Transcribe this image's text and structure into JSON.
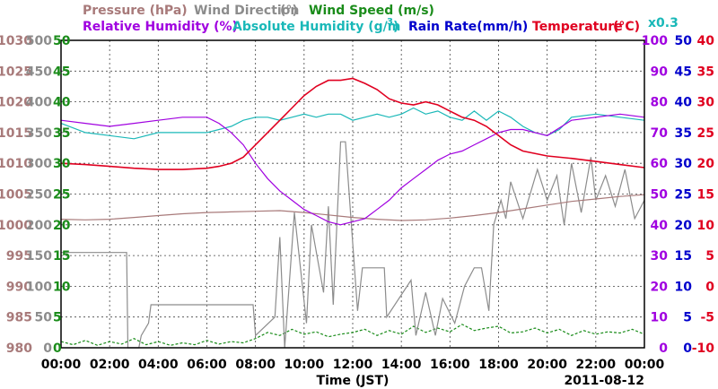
{
  "chart_data": {
    "type": "line",
    "xlabel": "Time (JST)",
    "date_label": "2011-08-12",
    "x_ticks": [
      "00:00",
      "02:00",
      "04:00",
      "06:00",
      "08:00",
      "10:00",
      "12:00",
      "14:00",
      "16:00",
      "18:00",
      "20:00",
      "22:00",
      "00:00"
    ],
    "grid": true,
    "legend": [
      {
        "text": "Pressure (hPa)",
        "color": "#a87a7a"
      },
      {
        "text": "Wind Direction",
        "color": "#8c8c8c"
      },
      {
        "text": "Wind Speed (m/s)",
        "color": "#1a8c1a"
      },
      {
        "text": "Relative Humidity (%)",
        "color": "#a000e0"
      },
      {
        "text": "Absolute Humidity (g/m",
        "color": "#1ab8b8"
      },
      {
        "text": "Rain Rate(mm/h)",
        "color": "#0000cc"
      },
      {
        "text": "Temperature",
        "color": "#e00020"
      },
      {
        "text": "x0.3",
        "color": "#1ab8b8"
      }
    ],
    "axes": {
      "pressure": {
        "color": "#a87a7a",
        "range": [
          980,
          1030
        ],
        "ticks": [
          "1030",
          "1025",
          "1020",
          "1015",
          "1010",
          "1005",
          "1000",
          "995",
          "990",
          "985",
          "980"
        ]
      },
      "wind_direction": {
        "color": "#8c8c8c",
        "range": [
          0,
          500
        ],
        "ticks": [
          "500",
          "450",
          "400",
          "350",
          "300",
          "250",
          "200",
          "150",
          "100",
          "50",
          "0"
        ]
      },
      "wind_speed": {
        "color": "#1a8c1a",
        "range": [
          0,
          50
        ],
        "ticks": [
          "50",
          "45",
          "40",
          "35",
          "30",
          "25",
          "20",
          "15",
          "10",
          "5",
          "0"
        ]
      },
      "humidity": {
        "color": "#a000e0",
        "range": [
          0,
          100
        ],
        "ticks": [
          "100",
          "90",
          "80",
          "70",
          "60",
          "50",
          "40",
          "30",
          "20",
          "10",
          "0"
        ]
      },
      "rain_rate": {
        "color": "#0000cc",
        "range": [
          0,
          50
        ],
        "ticks": [
          "50",
          "45",
          "40",
          "35",
          "30",
          "25",
          "20",
          "15",
          "10",
          "5",
          "0"
        ]
      },
      "temperature": {
        "color": "#e00020",
        "range": [
          -10,
          40
        ],
        "ticks": [
          "40",
          "35",
          "30",
          "25",
          "20",
          "15",
          "10",
          "5",
          "0",
          "-5",
          "-10"
        ]
      }
    },
    "series": [
      {
        "name": "Temperature",
        "color": "#e00020",
        "axis": "temperature",
        "x": [
          0,
          1,
          2,
          3,
          4,
          5,
          6,
          6.5,
          7,
          7.5,
          8,
          8.5,
          9,
          9.5,
          10,
          10.5,
          11,
          11.5,
          12,
          12.5,
          13,
          13.5,
          14,
          14.5,
          15,
          15.5,
          16,
          16.5,
          17,
          17.5,
          18,
          18.5,
          19,
          20,
          21,
          22,
          23,
          24
        ],
        "y": [
          20,
          19.8,
          19.5,
          19.2,
          19,
          19,
          19.2,
          19.5,
          20,
          21,
          23,
          25,
          27,
          29,
          31,
          32.5,
          33.5,
          33.5,
          33.8,
          33,
          32,
          30.5,
          29.8,
          29.5,
          30,
          29.5,
          28.5,
          27.5,
          27,
          26,
          24.5,
          23,
          22,
          21.2,
          20.8,
          20.3,
          19.8,
          19.3
        ]
      },
      {
        "name": "Relative Humidity (%)",
        "color": "#a000e0",
        "axis": "humidity",
        "x": [
          0,
          1,
          2,
          3,
          4,
          5,
          6,
          6.5,
          7,
          7.5,
          8,
          8.5,
          9,
          9.5,
          10,
          10.5,
          11,
          11.5,
          12,
          12.5,
          13,
          13.5,
          14,
          14.5,
          15,
          15.5,
          16,
          16.5,
          17,
          17.5,
          18,
          18.5,
          19,
          19.5,
          20,
          21,
          22,
          23,
          24
        ],
        "y": [
          74,
          73,
          72,
          73,
          74,
          75,
          75,
          73,
          70,
          66,
          60,
          55,
          51,
          48,
          45,
          43,
          41,
          40,
          41,
          42,
          45,
          48,
          52,
          55,
          58,
          61,
          63,
          64,
          66,
          68,
          70,
          71,
          71,
          70,
          69,
          74,
          75,
          76,
          75
        ]
      },
      {
        "name": "Absolute Humidity (g/m",
        "color": "#1ab8b8",
        "axis": "humidity",
        "x": [
          0,
          1,
          2,
          3,
          4,
          5,
          6,
          6.5,
          7,
          7.5,
          8,
          8.5,
          9,
          9.5,
          10,
          10.5,
          11,
          11.5,
          12,
          12.5,
          13,
          13.5,
          14,
          14.5,
          15,
          15.5,
          16,
          16.5,
          17,
          17.5,
          18,
          18.5,
          19,
          19.5,
          20,
          20.5,
          21,
          22,
          23,
          24
        ],
        "y": [
          73,
          70,
          69,
          68,
          70,
          70,
          70,
          71,
          72,
          74,
          75,
          75,
          74,
          75,
          76,
          75,
          76,
          76,
          74,
          75,
          76,
          75,
          76,
          78,
          76,
          77,
          75,
          74,
          77,
          74,
          77,
          75,
          72,
          70,
          69,
          71,
          75,
          76,
          75,
          74
        ]
      },
      {
        "name": "Pressure (hPa)",
        "color": "#a87a7a",
        "axis": "pressure",
        "x": [
          0,
          1,
          2,
          3,
          4,
          5,
          6,
          7,
          8,
          9,
          10,
          11,
          12,
          13,
          14,
          15,
          16,
          17,
          18,
          19,
          20,
          21,
          22,
          23,
          24
        ],
        "y": [
          1000.9,
          1000.8,
          1000.9,
          1001.2,
          1001.5,
          1001.8,
          1002,
          1002.1,
          1002.2,
          1002.3,
          1002,
          1001.6,
          1001.2,
          1000.9,
          1000.7,
          1000.8,
          1001.1,
          1001.5,
          1002,
          1002.6,
          1003.2,
          1003.8,
          1004.2,
          1004.6,
          1004.9
        ]
      },
      {
        "name": "Wind Direction",
        "color": "#8c8c8c",
        "axis": "wind_direction",
        "x": [
          0,
          2.7,
          2.75,
          3.2,
          3.3,
          3.6,
          3.7,
          7.9,
          8,
          8.8,
          9,
          9.2,
          9.6,
          10.1,
          10.3,
          10.8,
          11,
          11.2,
          11.5,
          11.7,
          12.2,
          12.4,
          12.7,
          13.3,
          13.4,
          14.4,
          14.6,
          15,
          15.4,
          15.7,
          16.2,
          16.6,
          17,
          17.3,
          17.6,
          17.8,
          18.1,
          18.3,
          18.5,
          19,
          19.6,
          20,
          20.4,
          20.7,
          21,
          21.4,
          21.8,
          22,
          22.4,
          22.8,
          23.2,
          23.6,
          24
        ],
        "y": [
          155,
          155,
          0,
          0,
          20,
          40,
          70,
          70,
          20,
          50,
          180,
          0,
          220,
          40,
          200,
          90,
          230,
          70,
          335,
          335,
          60,
          130,
          130,
          130,
          50,
          110,
          20,
          90,
          20,
          80,
          40,
          100,
          130,
          130,
          60,
          200,
          240,
          210,
          270,
          210,
          290,
          240,
          280,
          200,
          300,
          220,
          310,
          240,
          280,
          230,
          290,
          210,
          240
        ]
      },
      {
        "name": "Wind Speed (m/s)",
        "color": "#1a8c1a",
        "axis": "wind_speed",
        "x": [
          0,
          0.5,
          1,
          1.5,
          2,
          2.5,
          3,
          3.5,
          4,
          4.5,
          5,
          5.5,
          6,
          6.5,
          7,
          7.5,
          8,
          8.5,
          9,
          9.5,
          10,
          10.5,
          11,
          11.5,
          12,
          12.5,
          13,
          13.5,
          14,
          14.5,
          15,
          15.5,
          16,
          16.5,
          17,
          17.5,
          18,
          18.5,
          19,
          19.5,
          20,
          20.5,
          21,
          21.5,
          22,
          22.5,
          23,
          23.5,
          24
        ],
        "y": [
          1,
          0.5,
          1.2,
          0.4,
          1,
          0.6,
          1.5,
          0.5,
          1,
          0.4,
          0.8,
          0.5,
          1.2,
          0.6,
          1,
          0.8,
          1.5,
          2.5,
          2,
          3,
          2.2,
          2.6,
          1.8,
          2.2,
          2.5,
          3,
          2,
          2.8,
          2.2,
          3.5,
          2.5,
          3.2,
          2.6,
          3.8,
          2.8,
          3.2,
          3.5,
          2.4,
          2.6,
          3.2,
          2.4,
          3,
          2,
          2.8,
          2.2,
          2.6,
          2.4,
          3,
          2.2
        ]
      }
    ]
  }
}
